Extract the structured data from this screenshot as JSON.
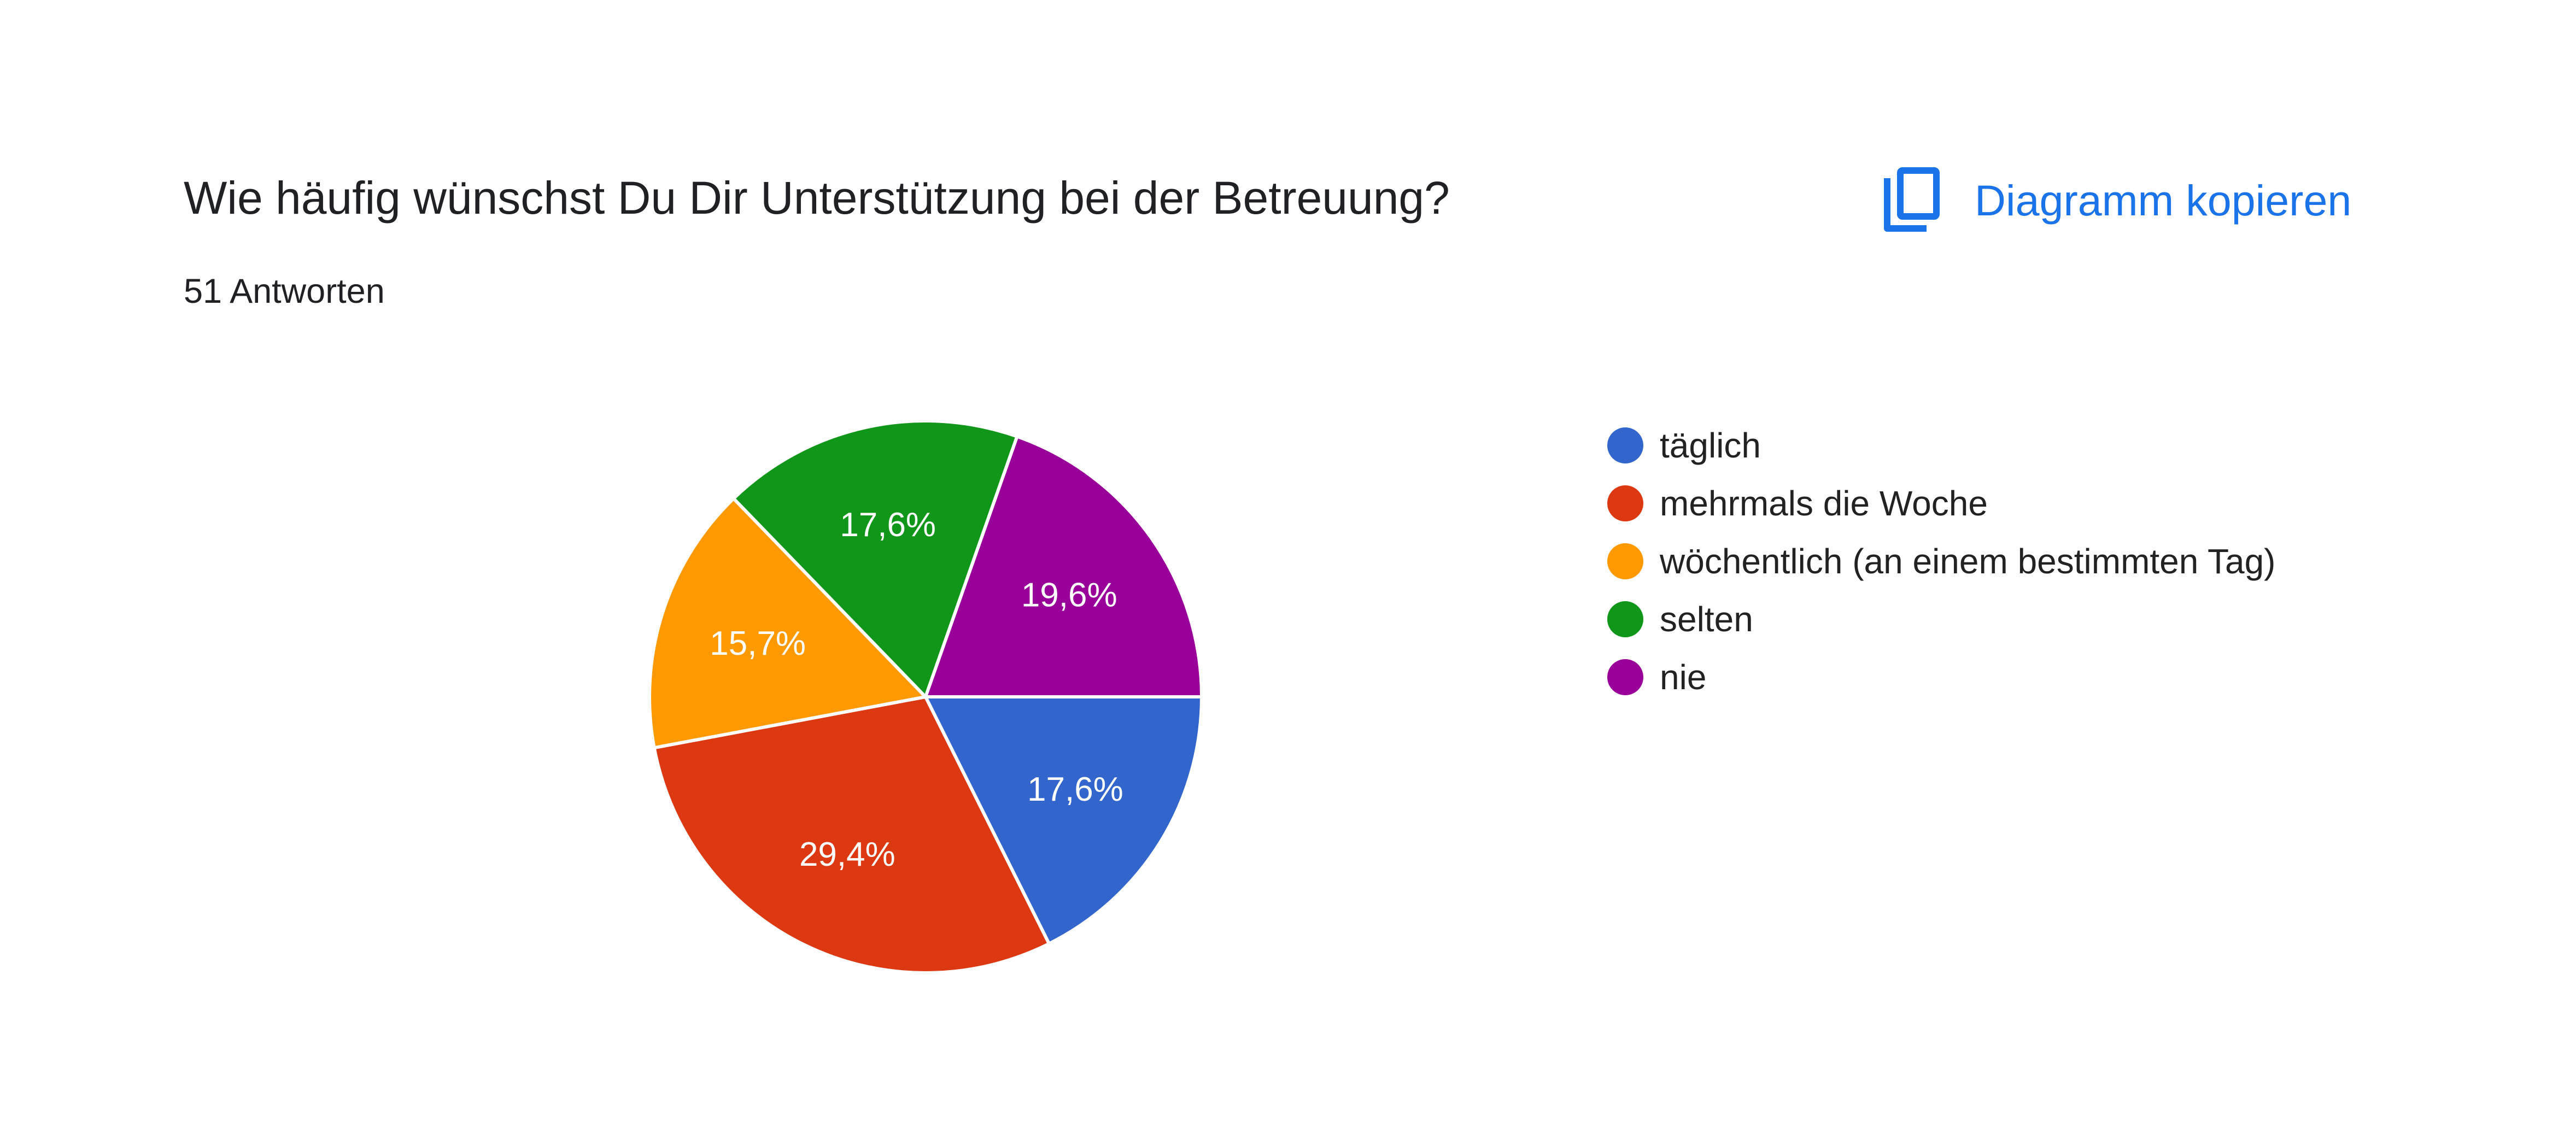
{
  "question": {
    "title": "Wie häufig wünschst Du Dir Unterstützung bei der Betreuung?",
    "responses": "51 Antworten"
  },
  "toolbar": {
    "copy_label": "Diagramm kopieren",
    "copy_icon": "copy-icon"
  },
  "chart_data": {
    "type": "pie",
    "categories": [
      "täglich",
      "mehrmals die Woche",
      "wöchentlich (an einem bestimmten Tag)",
      "selten",
      "nie"
    ],
    "values": [
      17.6,
      29.4,
      15.7,
      17.6,
      19.6
    ],
    "labels": [
      "17,6%",
      "29,4%",
      "15,7%",
      "17,6%",
      "19,6%"
    ],
    "colors": [
      "#3366cc",
      "#dc3912",
      "#ff9900",
      "#109618",
      "#990099"
    ],
    "legend_position": "right"
  }
}
